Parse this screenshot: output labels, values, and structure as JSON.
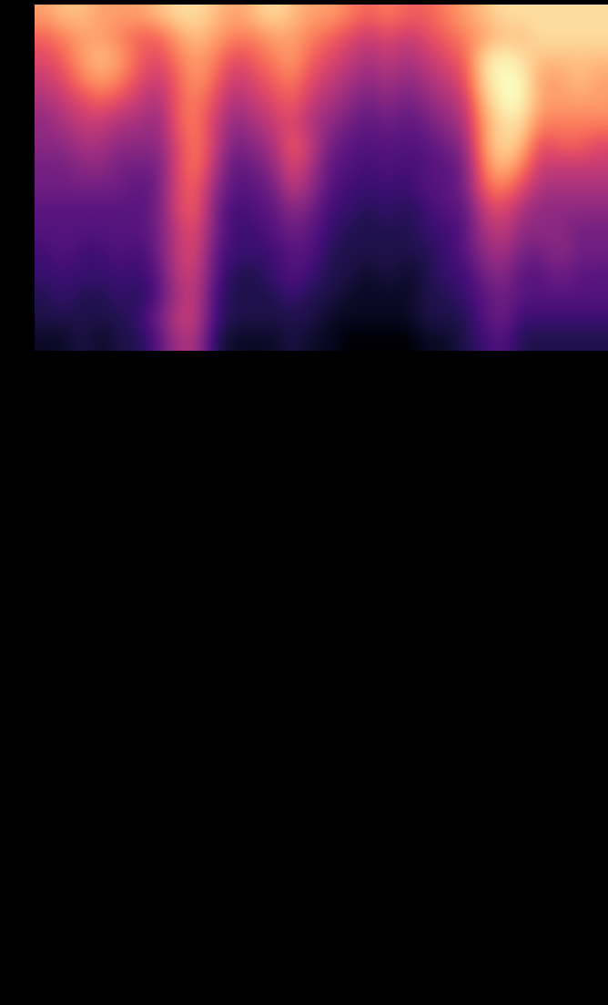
{
  "chart_data": {
    "type": "heatmap",
    "color": "magma",
    "tick_labels": false,
    "cells": [
      [
        0.7,
        0.75,
        0.75,
        0.7,
        0.7,
        0.7,
        0.75,
        0.8,
        0.8,
        0.75,
        0.7,
        0.75,
        0.8,
        0.75,
        0.7,
        0.7,
        0.65,
        0.6,
        0.65,
        0.6,
        0.6,
        0.65,
        0.7,
        0.75,
        0.8,
        0.8,
        0.8,
        0.8,
        0.8,
        0.8
      ],
      [
        0.6,
        0.65,
        0.7,
        0.7,
        0.65,
        0.6,
        0.6,
        0.7,
        0.75,
        0.7,
        0.65,
        0.65,
        0.7,
        0.7,
        0.65,
        0.6,
        0.55,
        0.5,
        0.55,
        0.5,
        0.55,
        0.6,
        0.65,
        0.7,
        0.75,
        0.75,
        0.8,
        0.8,
        0.8,
        0.8
      ],
      [
        0.55,
        0.6,
        0.7,
        0.75,
        0.7,
        0.6,
        0.55,
        0.65,
        0.7,
        0.65,
        0.55,
        0.6,
        0.65,
        0.7,
        0.6,
        0.55,
        0.5,
        0.45,
        0.5,
        0.45,
        0.5,
        0.55,
        0.6,
        0.8,
        0.85,
        0.8,
        0.75,
        0.75,
        0.75,
        0.75
      ],
      [
        0.5,
        0.55,
        0.65,
        0.7,
        0.65,
        0.55,
        0.5,
        0.6,
        0.7,
        0.6,
        0.5,
        0.55,
        0.6,
        0.65,
        0.55,
        0.5,
        0.45,
        0.4,
        0.45,
        0.4,
        0.45,
        0.5,
        0.55,
        0.8,
        0.85,
        0.85,
        0.7,
        0.7,
        0.75,
        0.7
      ],
      [
        0.45,
        0.5,
        0.55,
        0.6,
        0.55,
        0.5,
        0.45,
        0.6,
        0.65,
        0.55,
        0.45,
        0.5,
        0.55,
        0.6,
        0.5,
        0.45,
        0.4,
        0.35,
        0.4,
        0.35,
        0.4,
        0.45,
        0.5,
        0.75,
        0.85,
        0.85,
        0.7,
        0.7,
        0.7,
        0.7
      ],
      [
        0.4,
        0.45,
        0.5,
        0.5,
        0.45,
        0.45,
        0.4,
        0.6,
        0.65,
        0.5,
        0.4,
        0.45,
        0.5,
        0.55,
        0.45,
        0.4,
        0.35,
        0.3,
        0.35,
        0.3,
        0.35,
        0.4,
        0.45,
        0.7,
        0.8,
        0.8,
        0.65,
        0.65,
        0.65,
        0.65
      ],
      [
        0.4,
        0.4,
        0.45,
        0.45,
        0.4,
        0.4,
        0.4,
        0.55,
        0.65,
        0.5,
        0.35,
        0.4,
        0.45,
        0.6,
        0.5,
        0.35,
        0.3,
        0.3,
        0.3,
        0.3,
        0.3,
        0.35,
        0.4,
        0.7,
        0.8,
        0.75,
        0.55,
        0.6,
        0.6,
        0.55
      ],
      [
        0.35,
        0.35,
        0.4,
        0.4,
        0.35,
        0.35,
        0.35,
        0.55,
        0.65,
        0.45,
        0.3,
        0.35,
        0.4,
        0.55,
        0.45,
        0.3,
        0.3,
        0.25,
        0.3,
        0.25,
        0.3,
        0.3,
        0.35,
        0.65,
        0.75,
        0.65,
        0.5,
        0.5,
        0.5,
        0.5
      ],
      [
        0.35,
        0.35,
        0.35,
        0.35,
        0.35,
        0.3,
        0.35,
        0.55,
        0.6,
        0.4,
        0.3,
        0.3,
        0.35,
        0.5,
        0.4,
        0.3,
        0.25,
        0.25,
        0.25,
        0.25,
        0.3,
        0.3,
        0.35,
        0.6,
        0.65,
        0.55,
        0.45,
        0.45,
        0.45,
        0.45
      ],
      [
        0.3,
        0.3,
        0.3,
        0.3,
        0.3,
        0.3,
        0.35,
        0.55,
        0.6,
        0.35,
        0.25,
        0.3,
        0.3,
        0.4,
        0.35,
        0.25,
        0.25,
        0.2,
        0.25,
        0.2,
        0.25,
        0.3,
        0.3,
        0.5,
        0.55,
        0.45,
        0.4,
        0.4,
        0.4,
        0.4
      ],
      [
        0.3,
        0.3,
        0.3,
        0.3,
        0.3,
        0.3,
        0.35,
        0.5,
        0.55,
        0.35,
        0.25,
        0.25,
        0.3,
        0.35,
        0.3,
        0.25,
        0.2,
        0.2,
        0.2,
        0.2,
        0.25,
        0.25,
        0.3,
        0.45,
        0.5,
        0.4,
        0.4,
        0.4,
        0.35,
        0.35
      ],
      [
        0.25,
        0.3,
        0.25,
        0.25,
        0.3,
        0.25,
        0.35,
        0.5,
        0.55,
        0.3,
        0.25,
        0.25,
        0.25,
        0.3,
        0.3,
        0.2,
        0.2,
        0.2,
        0.2,
        0.2,
        0.2,
        0.25,
        0.3,
        0.4,
        0.45,
        0.35,
        0.35,
        0.4,
        0.35,
        0.35
      ],
      [
        0.25,
        0.25,
        0.25,
        0.25,
        0.25,
        0.25,
        0.3,
        0.5,
        0.5,
        0.3,
        0.2,
        0.2,
        0.25,
        0.3,
        0.25,
        0.2,
        0.2,
        0.15,
        0.2,
        0.15,
        0.2,
        0.25,
        0.25,
        0.35,
        0.4,
        0.3,
        0.3,
        0.35,
        0.3,
        0.3
      ],
      [
        0.2,
        0.25,
        0.2,
        0.2,
        0.25,
        0.2,
        0.3,
        0.45,
        0.5,
        0.25,
        0.2,
        0.2,
        0.2,
        0.25,
        0.2,
        0.2,
        0.15,
        0.15,
        0.15,
        0.15,
        0.2,
        0.2,
        0.25,
        0.3,
        0.35,
        0.3,
        0.3,
        0.3,
        0.3,
        0.3
      ],
      [
        0.2,
        0.2,
        0.2,
        0.2,
        0.2,
        0.25,
        0.35,
        0.5,
        0.5,
        0.25,
        0.2,
        0.2,
        0.2,
        0.2,
        0.2,
        0.15,
        0.15,
        0.15,
        0.15,
        0.15,
        0.2,
        0.2,
        0.2,
        0.3,
        0.35,
        0.25,
        0.25,
        0.25,
        0.25,
        0.25
      ],
      [
        0.15,
        0.15,
        0.2,
        0.15,
        0.2,
        0.2,
        0.3,
        0.45,
        0.45,
        0.2,
        0.15,
        0.15,
        0.15,
        0.2,
        0.15,
        0.15,
        0.1,
        0.1,
        0.1,
        0.1,
        0.15,
        0.15,
        0.2,
        0.25,
        0.3,
        0.2,
        0.2,
        0.2,
        0.2,
        0.2
      ]
    ]
  }
}
